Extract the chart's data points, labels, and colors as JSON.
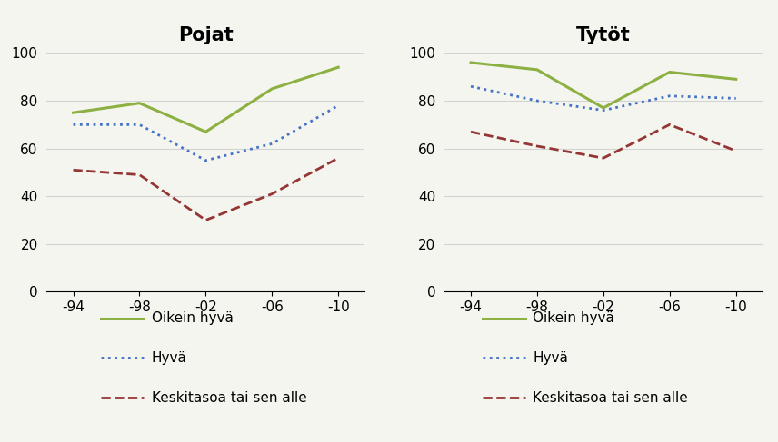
{
  "x_labels": [
    "-94",
    "-98",
    "-02",
    "-06",
    "-10"
  ],
  "x_values": [
    0,
    1,
    2,
    3,
    4
  ],
  "pojat": {
    "title": "Pojat",
    "oikein_hyva": [
      75,
      79,
      67,
      85,
      94
    ],
    "hyva": [
      70,
      70,
      55,
      62,
      78
    ],
    "keski": [
      51,
      49,
      30,
      41,
      56
    ]
  },
  "tytot": {
    "title": "Tytöt",
    "oikein_hyva": [
      96,
      93,
      77,
      92,
      89
    ],
    "hyva": [
      86,
      80,
      76,
      82,
      81
    ],
    "keski": [
      67,
      61,
      56,
      70,
      59
    ]
  },
  "colors": {
    "oikein_hyva": "#8db042",
    "hyva": "#4472c4",
    "keski": "#943634"
  },
  "legend_labels": [
    "Oikein hyvä",
    "Hyvä",
    "Keskitasoa tai sen alle"
  ],
  "ylim": [
    0,
    100
  ],
  "yticks": [
    0,
    20,
    40,
    60,
    80,
    100
  ],
  "background_color": "#f5f5f0"
}
